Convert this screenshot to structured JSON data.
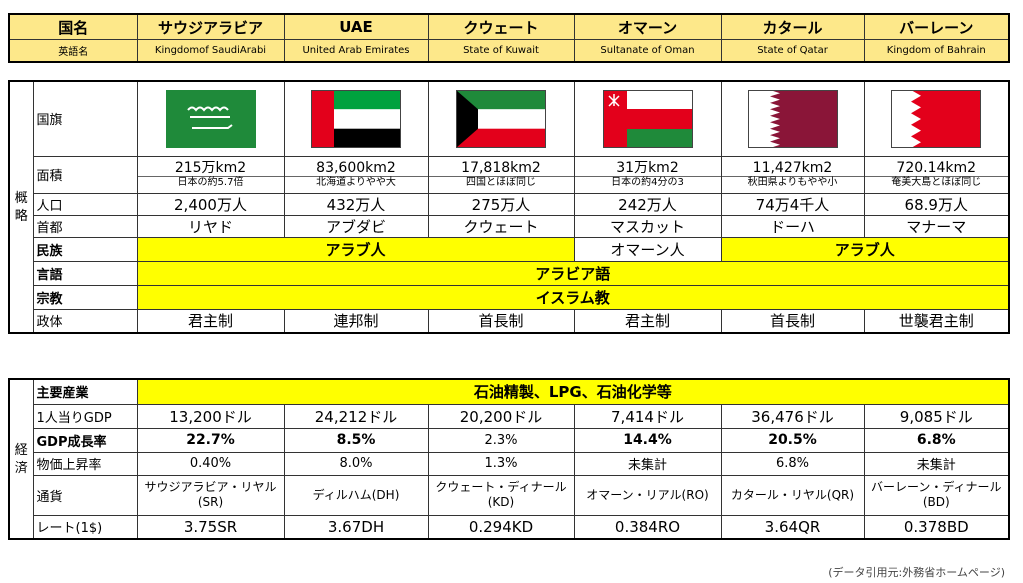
{
  "header": {
    "row1_label": "国名",
    "row2_label": "英語名",
    "countries": [
      {
        "name": "サウジアラビア",
        "english": "Kingdomof SaudiArabi"
      },
      {
        "name": "UAE",
        "english": "United Arab Emirates"
      },
      {
        "name": "クウェート",
        "english": "State of Kuwait"
      },
      {
        "name": "オマーン",
        "english": "Sultanate of Oman"
      },
      {
        "name": "カタール",
        "english": "State of Qatar"
      },
      {
        "name": "バーレーン",
        "english": "Kingdom of Bahrain"
      }
    ]
  },
  "overview": {
    "section_label_1": "概",
    "section_label_2": "略",
    "flag_label": "国旗",
    "flag_icons": [
      "saudi-flag-icon",
      "uae-flag-icon",
      "kuwait-flag-icon",
      "oman-flag-icon",
      "qatar-flag-icon",
      "bahrain-flag-icon"
    ],
    "area_label": "面積",
    "area": [
      {
        "value": "215万km2",
        "note": "日本の約5.7倍"
      },
      {
        "value": "83,600km2",
        "note": "北海道よりやや大"
      },
      {
        "value": "17,818km2",
        "note": "四国とほぼ同じ"
      },
      {
        "value": "31万km2",
        "note": "日本の約4分の3"
      },
      {
        "value": "11,427km2",
        "note": "秋田県よりもやや小"
      },
      {
        "value": "720.14km2",
        "note": "奄美大島とほぼ同じ"
      }
    ],
    "population_label": "人口",
    "population": [
      "2,400万人",
      "432万人",
      "275万人",
      "242万人",
      "74万4千人",
      "68.9万人"
    ],
    "capital_label": "首都",
    "capital": [
      "リヤド",
      "アブダビ",
      "クウェート",
      "マスカット",
      "ドーハ",
      "マナーマ"
    ],
    "ethnicity_label": "民族",
    "ethnicity_group1": "アラブ人",
    "ethnicity_oman": "オマーン人",
    "ethnicity_group2": "アラブ人",
    "language_label": "言語",
    "language": "アラビア語",
    "religion_label": "宗教",
    "religion": "イスラム教",
    "government_label": "政体",
    "government": [
      "君主制",
      "連邦制",
      "首長制",
      "君主制",
      "首長制",
      "世襲君主制"
    ]
  },
  "economy": {
    "section_label_1": "経",
    "section_label_2": "済",
    "industry_label": "主要産業",
    "industry": "石油精製、LPG、石油化学等",
    "gdp_label": "1人当りGDP",
    "gdp": [
      "13,200ドル",
      "24,212ドル",
      "20,200ドル",
      "7,414ドル",
      "36,476ドル",
      "9,085ドル"
    ],
    "growth_label": "GDP成長率",
    "growth": [
      "22.7%",
      "8.5%",
      "2.3%",
      "14.4%",
      "20.5%",
      "6.8%"
    ],
    "growth_bold": [
      true,
      true,
      false,
      true,
      true,
      true
    ],
    "inflation_label": "物価上昇率",
    "inflation": [
      "0.40%",
      "8.0%",
      "1.3%",
      "未集計",
      "6.8%",
      "未集計"
    ],
    "currency_label": "通貨",
    "currency": [
      "サウジアラビア・リヤル(SR)",
      "ディルハム(DH)",
      "クウェート・ディナール(KD)",
      "オマーン・リアル(RO)",
      "カタール・リヤル(QR)",
      "バーレーン・ディナール(BD)"
    ],
    "rate_label": "レート(1$)",
    "rate": [
      "3.75SR",
      "3.67DH",
      "0.294KD",
      "0.384RO",
      "3.64QR",
      "0.378BD"
    ]
  },
  "footer": {
    "source": "(データ引用元:外務省ホームページ)"
  },
  "colors": {
    "yellow": "#ffff00",
    "header_yellow": "#fde88a"
  }
}
